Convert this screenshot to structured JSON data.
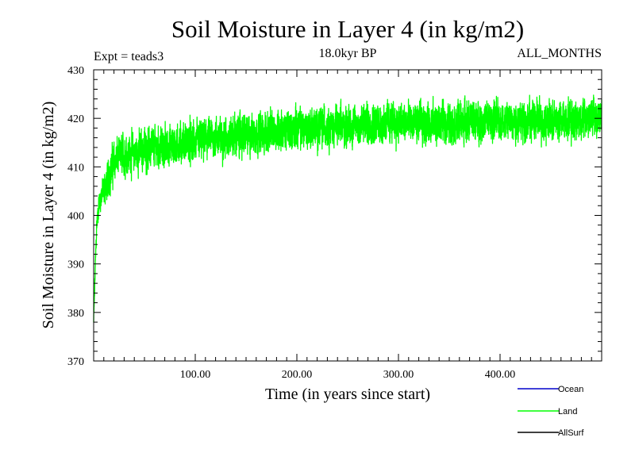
{
  "chart_data": {
    "type": "line",
    "title": "Soil Moisture in Layer 4 (in kg/m2)",
    "subtitle": "18.0kyr BP",
    "experiment_label": "Expt = teads3",
    "period_label": "ALL_MONTHS",
    "xlabel": "Time (in years since start)",
    "ylabel": "Soil Moisture in Layer 4 (in kg/m2)",
    "xlim": [
      0,
      500
    ],
    "ylim": [
      370,
      430
    ],
    "x_ticks": [
      100,
      200,
      300,
      400
    ],
    "x_tick_labels": [
      "100.00",
      "200.00",
      "300.00",
      "400.00"
    ],
    "y_ticks": [
      370,
      380,
      390,
      400,
      410,
      420,
      430
    ],
    "y_tick_labels": [
      "370",
      "380",
      "390",
      "400",
      "410",
      "420",
      "430"
    ],
    "legend_position": "bottom-right",
    "series": [
      {
        "name": "Ocean",
        "color": "#0000cc",
        "values": []
      },
      {
        "name": "Land",
        "color": "#00ff00",
        "x": [
          0,
          1,
          2,
          3,
          5,
          7,
          10,
          12,
          15,
          18,
          20,
          25,
          30,
          40,
          50,
          60,
          70,
          80,
          90,
          100,
          110,
          120,
          130,
          140,
          150,
          160,
          170,
          180,
          190,
          200,
          210,
          220,
          230,
          240,
          250,
          260,
          270,
          280,
          290,
          300,
          310,
          320,
          330,
          340,
          350,
          360,
          370,
          380,
          390,
          400,
          410,
          420,
          430,
          440,
          450,
          460,
          470,
          480,
          490,
          500
        ],
        "values": [
          378,
          385,
          392,
          398,
          402,
          404,
          405,
          406,
          408,
          410,
          411,
          412,
          412.5,
          413,
          413.5,
          414,
          414,
          414.5,
          415,
          415,
          415.5,
          416,
          416,
          416.5,
          416.5,
          417,
          417,
          417.5,
          417.5,
          418,
          418,
          418,
          418.5,
          418.5,
          418.5,
          418.5,
          419,
          419,
          419,
          419,
          419,
          419,
          419,
          419,
          419,
          419,
          419.5,
          419.5,
          419.5,
          419.5,
          419.5,
          419.5,
          419.5,
          419.5,
          419.5,
          419.5,
          420,
          420,
          420,
          420
        ],
        "fluctuation_amplitude": 5
      },
      {
        "name": "AllSurf",
        "color": "#000000",
        "values": []
      }
    ]
  }
}
